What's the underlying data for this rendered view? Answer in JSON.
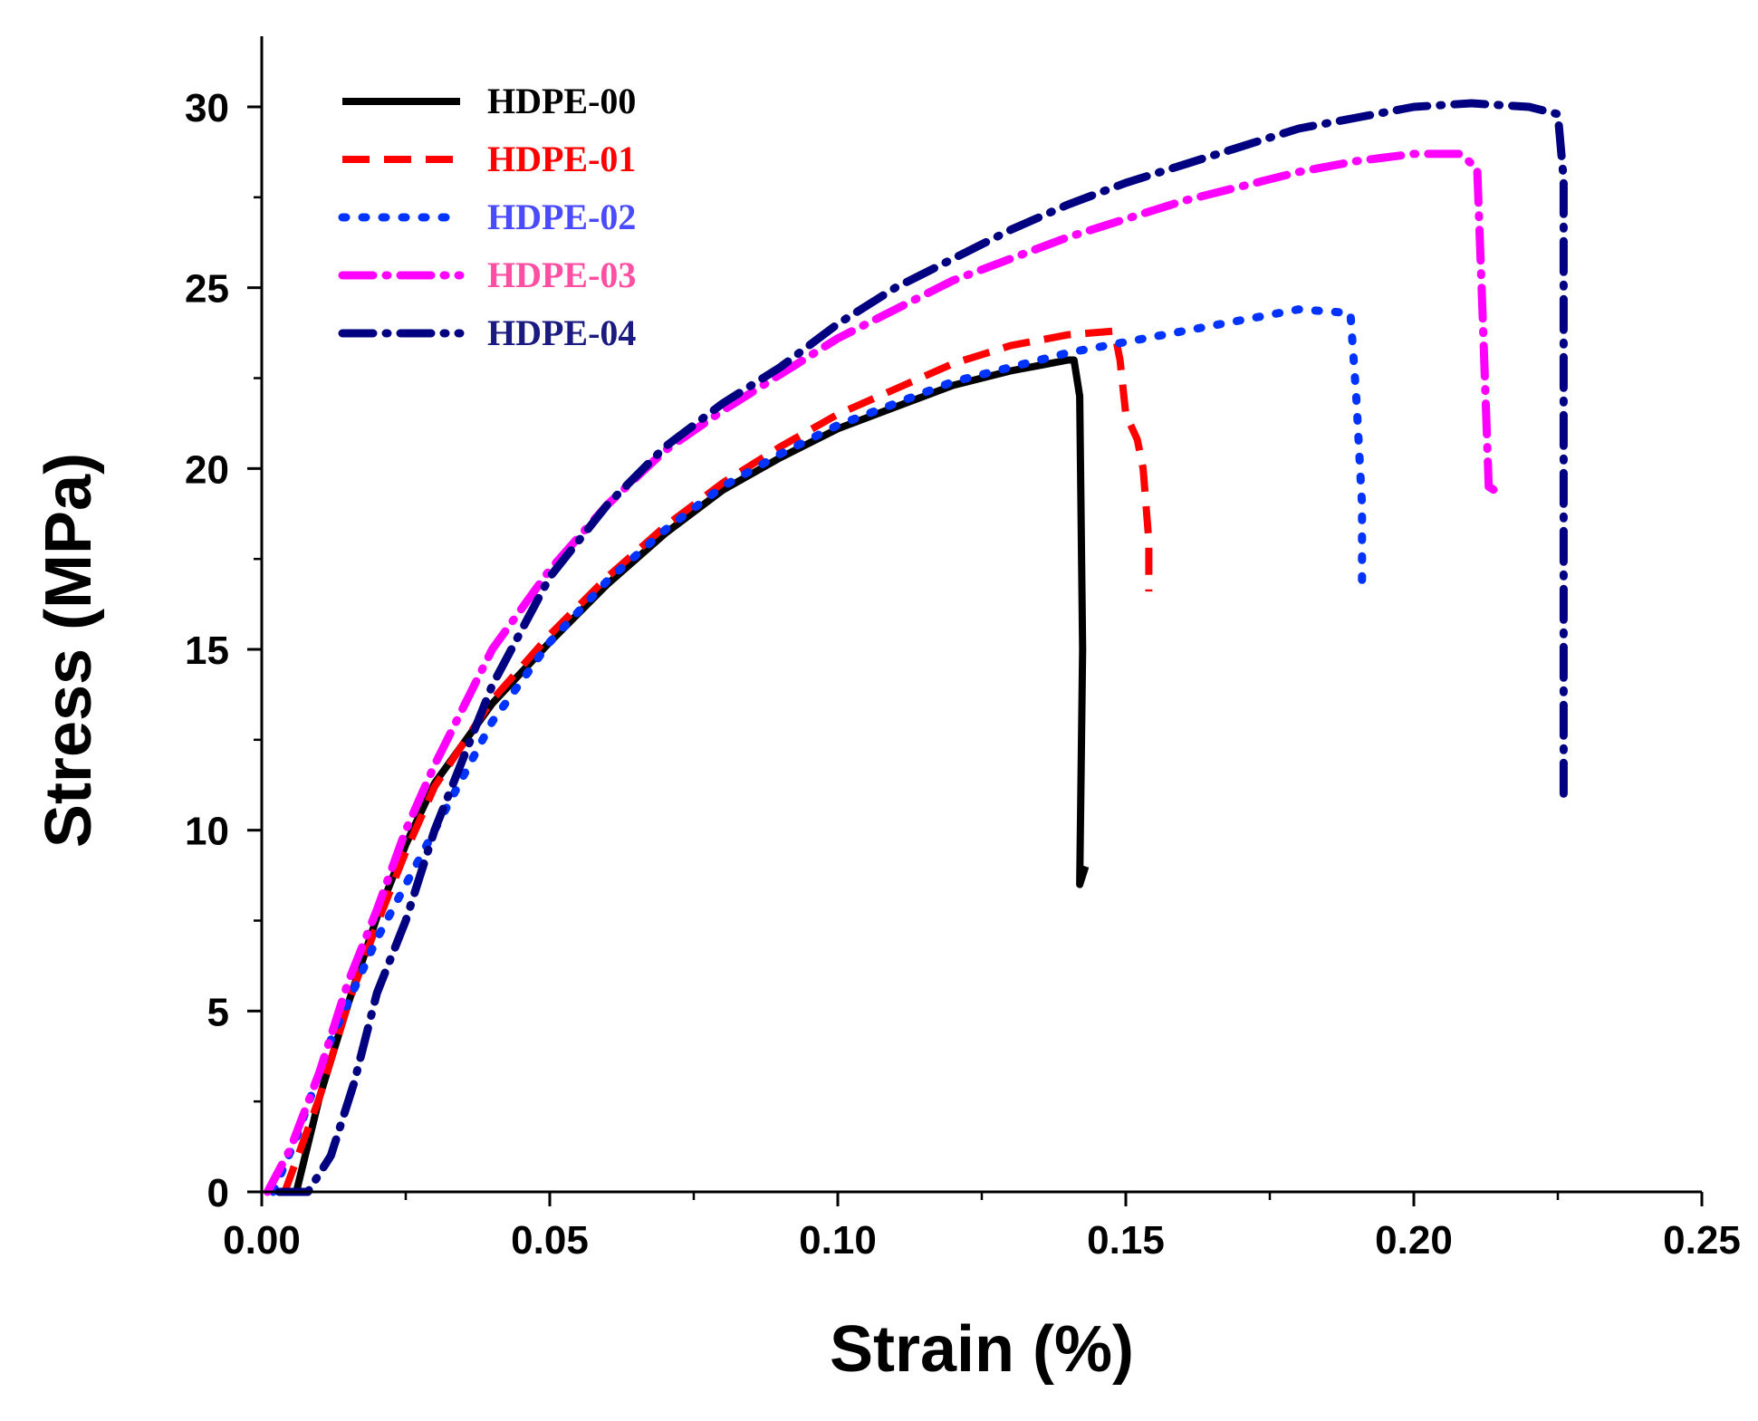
{
  "chart_data": {
    "type": "line",
    "title": "",
    "xlabel": "Strain (%)",
    "ylabel": "Stress (MPa)",
    "xlim": [
      0,
      0.25
    ],
    "ylim": [
      0,
      32
    ],
    "grid": false,
    "legend_position": "top-left",
    "x_ticks": [
      0.0,
      0.05,
      0.1,
      0.15,
      0.2,
      0.25
    ],
    "x_tick_labels": [
      "0.00",
      "0.05",
      "0.10",
      "0.15",
      "0.20",
      "0.25"
    ],
    "y_ticks": [
      0,
      5,
      10,
      15,
      20,
      25,
      30
    ],
    "y_tick_labels": [
      "0",
      "5",
      "10",
      "15",
      "20",
      "25",
      "30"
    ],
    "series": [
      {
        "name": "HDPE-00",
        "color": "#000000",
        "style": "solid",
        "points": [
          [
            0.006,
            0
          ],
          [
            0.01,
            2.6
          ],
          [
            0.015,
            5.2
          ],
          [
            0.02,
            7.6
          ],
          [
            0.025,
            9.6
          ],
          [
            0.03,
            11.3
          ],
          [
            0.04,
            13.5
          ],
          [
            0.05,
            15.2
          ],
          [
            0.06,
            16.8
          ],
          [
            0.07,
            18.2
          ],
          [
            0.08,
            19.4
          ],
          [
            0.09,
            20.3
          ],
          [
            0.1,
            21.1
          ],
          [
            0.11,
            21.7
          ],
          [
            0.12,
            22.3
          ],
          [
            0.13,
            22.7
          ],
          [
            0.14,
            23.0
          ],
          [
            0.141,
            23.0
          ],
          [
            0.142,
            22.0
          ],
          [
            0.1425,
            15.0
          ],
          [
            0.142,
            8.5
          ],
          [
            0.143,
            9.0
          ]
        ]
      },
      {
        "name": "HDPE-01",
        "color": "#ff0000",
        "style": "dash",
        "points": [
          [
            0.004,
            0
          ],
          [
            0.01,
            2.6
          ],
          [
            0.015,
            5.2
          ],
          [
            0.02,
            7.4
          ],
          [
            0.025,
            9.4
          ],
          [
            0.03,
            11.2
          ],
          [
            0.04,
            13.6
          ],
          [
            0.05,
            15.4
          ],
          [
            0.06,
            17.0
          ],
          [
            0.07,
            18.4
          ],
          [
            0.08,
            19.6
          ],
          [
            0.09,
            20.6
          ],
          [
            0.1,
            21.5
          ],
          [
            0.11,
            22.2
          ],
          [
            0.12,
            22.9
          ],
          [
            0.13,
            23.4
          ],
          [
            0.14,
            23.7
          ],
          [
            0.148,
            23.8
          ],
          [
            0.149,
            23.0
          ],
          [
            0.15,
            21.5
          ],
          [
            0.152,
            20.8
          ],
          [
            0.153,
            20.0
          ],
          [
            0.154,
            18.0
          ],
          [
            0.154,
            16.6
          ]
        ]
      },
      {
        "name": "HDPE-02",
        "color": "#0033ff",
        "style": "dot",
        "points": [
          [
            0.002,
            0
          ],
          [
            0.006,
            1.5
          ],
          [
            0.012,
            4.2
          ],
          [
            0.02,
            7.0
          ],
          [
            0.03,
            10.0
          ],
          [
            0.04,
            13.0
          ],
          [
            0.05,
            15.2
          ],
          [
            0.06,
            16.9
          ],
          [
            0.07,
            18.3
          ],
          [
            0.08,
            19.5
          ],
          [
            0.09,
            20.4
          ],
          [
            0.1,
            21.2
          ],
          [
            0.11,
            21.8
          ],
          [
            0.12,
            22.4
          ],
          [
            0.13,
            22.8
          ],
          [
            0.14,
            23.2
          ],
          [
            0.15,
            23.5
          ],
          [
            0.16,
            23.8
          ],
          [
            0.17,
            24.1
          ],
          [
            0.18,
            24.4
          ],
          [
            0.189,
            24.3
          ],
          [
            0.19,
            22.0
          ],
          [
            0.191,
            19.0
          ],
          [
            0.191,
            16.6
          ]
        ]
      },
      {
        "name": "HDPE-03",
        "color": "#ff00ff",
        "style": "dashdot",
        "points": [
          [
            0.001,
            0
          ],
          [
            0.005,
            1.2
          ],
          [
            0.01,
            3.3
          ],
          [
            0.015,
            5.8
          ],
          [
            0.02,
            7.8
          ],
          [
            0.025,
            10.0
          ],
          [
            0.03,
            11.8
          ],
          [
            0.04,
            15.0
          ],
          [
            0.05,
            17.2
          ],
          [
            0.06,
            19.0
          ],
          [
            0.07,
            20.5
          ],
          [
            0.08,
            21.6
          ],
          [
            0.09,
            22.6
          ],
          [
            0.1,
            23.6
          ],
          [
            0.11,
            24.4
          ],
          [
            0.12,
            25.2
          ],
          [
            0.13,
            25.8
          ],
          [
            0.14,
            26.4
          ],
          [
            0.15,
            26.9
          ],
          [
            0.16,
            27.4
          ],
          [
            0.17,
            27.8
          ],
          [
            0.18,
            28.2
          ],
          [
            0.19,
            28.5
          ],
          [
            0.2,
            28.7
          ],
          [
            0.208,
            28.7
          ],
          [
            0.211,
            28.3
          ],
          [
            0.212,
            24.0
          ],
          [
            0.213,
            19.5
          ],
          [
            0.215,
            19.3
          ]
        ]
      },
      {
        "name": "HDPE-04",
        "color": "#000080",
        "style": "dashdot",
        "points": [
          [
            0.003,
            0
          ],
          [
            0.008,
            0
          ],
          [
            0.012,
            1.0
          ],
          [
            0.016,
            3.0
          ],
          [
            0.02,
            5.5
          ],
          [
            0.025,
            7.5
          ],
          [
            0.03,
            10.0
          ],
          [
            0.035,
            12.0
          ],
          [
            0.04,
            14.0
          ],
          [
            0.05,
            17.0
          ],
          [
            0.06,
            19.0
          ],
          [
            0.07,
            20.6
          ],
          [
            0.08,
            21.8
          ],
          [
            0.09,
            22.8
          ],
          [
            0.1,
            24.0
          ],
          [
            0.11,
            25.0
          ],
          [
            0.12,
            25.8
          ],
          [
            0.13,
            26.6
          ],
          [
            0.14,
            27.3
          ],
          [
            0.15,
            27.9
          ],
          [
            0.16,
            28.4
          ],
          [
            0.17,
            28.9
          ],
          [
            0.18,
            29.4
          ],
          [
            0.19,
            29.7
          ],
          [
            0.2,
            30.0
          ],
          [
            0.21,
            30.1
          ],
          [
            0.22,
            30.0
          ],
          [
            0.225,
            29.8
          ],
          [
            0.226,
            28.0
          ],
          [
            0.226,
            20.0
          ],
          [
            0.226,
            11.0
          ]
        ]
      }
    ]
  }
}
